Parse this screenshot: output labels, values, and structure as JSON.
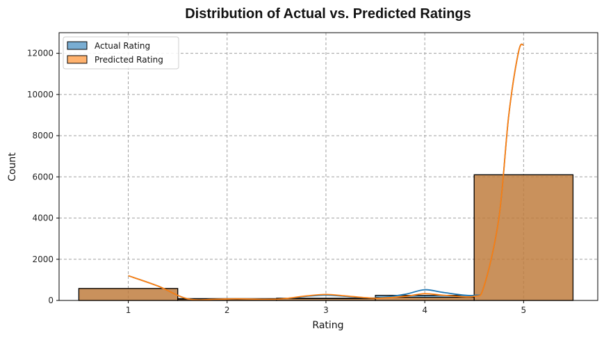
{
  "chart_data": {
    "type": "bar",
    "title": "Distribution of Actual vs. Predicted Ratings",
    "xlabel": "Rating",
    "ylabel": "Count",
    "categories": [
      1,
      2,
      3,
      4,
      5
    ],
    "xlim": [
      0.3,
      5.75
    ],
    "ylim": [
      0,
      13000
    ],
    "yticks": [
      0,
      2000,
      4000,
      6000,
      8000,
      10000,
      12000
    ],
    "grid": true,
    "legend_position": "top-left",
    "series": [
      {
        "name": "Actual Rating",
        "values": [
          580,
          90,
          110,
          250,
          6100
        ],
        "color": "#1f77b4"
      },
      {
        "name": "Predicted Rating",
        "values": [
          580,
          60,
          90,
          150,
          6100
        ],
        "color": "#ff7f0e"
      }
    ],
    "kde": [
      {
        "series": "Actual Rating",
        "color": "#1f77b4",
        "points": [
          [
            1.0,
            1200
          ],
          [
            1.3,
            700
          ],
          [
            1.6,
            80
          ],
          [
            1.9,
            60
          ],
          [
            2.1,
            80
          ],
          [
            2.5,
            60
          ],
          [
            2.8,
            200
          ],
          [
            3.0,
            260
          ],
          [
            3.2,
            200
          ],
          [
            3.5,
            120
          ],
          [
            3.8,
            300
          ],
          [
            4.0,
            520
          ],
          [
            4.2,
            380
          ],
          [
            4.5,
            250
          ],
          [
            4.6,
            700
          ],
          [
            4.75,
            4000
          ],
          [
            4.85,
            9000
          ],
          [
            4.95,
            12100
          ],
          [
            5.0,
            12400
          ]
        ]
      },
      {
        "series": "Predicted Rating",
        "color": "#ff7f0e",
        "points": [
          [
            1.0,
            1200
          ],
          [
            1.3,
            700
          ],
          [
            1.6,
            80
          ],
          [
            1.9,
            60
          ],
          [
            2.1,
            80
          ],
          [
            2.5,
            60
          ],
          [
            2.8,
            220
          ],
          [
            3.0,
            290
          ],
          [
            3.2,
            220
          ],
          [
            3.5,
            110
          ],
          [
            3.8,
            200
          ],
          [
            4.0,
            330
          ],
          [
            4.2,
            250
          ],
          [
            4.5,
            200
          ],
          [
            4.6,
            700
          ],
          [
            4.75,
            4000
          ],
          [
            4.85,
            9000
          ],
          [
            4.95,
            12100
          ],
          [
            5.0,
            12400
          ]
        ]
      }
    ]
  }
}
